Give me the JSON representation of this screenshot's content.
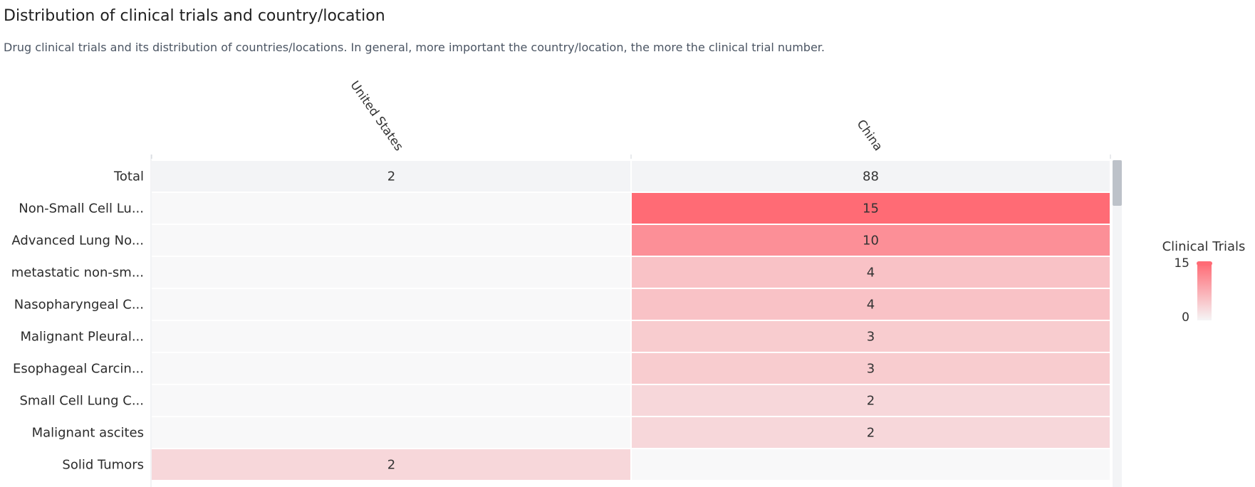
{
  "header": {
    "title": "Distribution of clinical trials and country/location",
    "subtitle": "Drug clinical trials and its distribution of countries/locations. In general, more important the country/location, the more the clinical trial number."
  },
  "chart_data": {
    "type": "heatmap",
    "title": "Distribution of clinical trials and country/location",
    "columns": [
      "United States",
      "China"
    ],
    "rows": [
      "Total",
      "Non-Small Cell Lu...",
      "Advanced Lung No...",
      "metastatic non-sm...",
      "Nasopharyngeal C...",
      "Malignant Pleural...",
      "Esophageal Carcin...",
      "Small Cell Lung C...",
      "Malignant ascites",
      "Solid Tumors"
    ],
    "values": [
      [
        2,
        88
      ],
      [
        null,
        15
      ],
      [
        null,
        10
      ],
      [
        null,
        4
      ],
      [
        null,
        4
      ],
      [
        null,
        3
      ],
      [
        null,
        3
      ],
      [
        null,
        2
      ],
      [
        null,
        2
      ],
      [
        2,
        null
      ]
    ],
    "legend": {
      "title": "Clinical Trials",
      "min_label": "0",
      "max_label": "15",
      "min": 0,
      "max": 15,
      "placement": "right"
    },
    "colors": {
      "high": "#ff6b75",
      "low": "#f5f5f6",
      "total_row": "#f3f4f6",
      "empty_cell": "#f8f8f9"
    }
  }
}
